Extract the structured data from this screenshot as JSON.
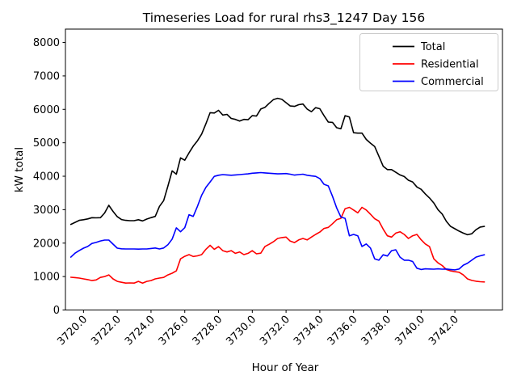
{
  "title": "Timeseries Load for rural rhs3_1247  Day 156",
  "chart_data": {
    "type": "line",
    "title": "Timeseries Load for rural rhs3_1247  Day 156",
    "xlabel": "Hour of Year",
    "ylabel": "kW total",
    "xlim": [
      3718.93,
      3744.82
    ],
    "ylim": [
      0,
      8400
    ],
    "grid": false,
    "legend_position": "upper right",
    "x_start": 3719.25,
    "x_step": 0.25,
    "x_ticks": [
      3720,
      3722,
      3724,
      3726,
      3728,
      3730,
      3732,
      3734,
      3736,
      3738,
      3740,
      3742
    ],
    "x_tick_labels": [
      "3720.0",
      "3722.0",
      "3724.0",
      "3726.0",
      "3728.0",
      "3730.0",
      "3732.0",
      "3734.0",
      "3736.0",
      "3738.0",
      "3740.0",
      "3742.0"
    ],
    "y_ticks": [
      0,
      1000,
      2000,
      3000,
      4000,
      5000,
      6000,
      7000,
      8000
    ],
    "y_tick_labels": [
      "0",
      "1000",
      "2000",
      "3000",
      "4000",
      "5000",
      "6000",
      "7000",
      "8000"
    ],
    "series": [
      {
        "name": "Total",
        "color": "#000000",
        "values": [
          2560,
          2620,
          2680,
          2700,
          2725,
          2760,
          2755,
          2760,
          2900,
          3130,
          2950,
          2790,
          2705,
          2680,
          2670,
          2670,
          2700,
          2665,
          2720,
          2760,
          2800,
          3100,
          3270,
          3700,
          4160,
          4060,
          4550,
          4480,
          4700,
          4900,
          5060,
          5260,
          5570,
          5900,
          5890,
          5970,
          5830,
          5850,
          5730,
          5700,
          5650,
          5700,
          5690,
          5810,
          5800,
          6010,
          6060,
          6180,
          6290,
          6330,
          6300,
          6200,
          6100,
          6090,
          6140,
          6160,
          6010,
          5930,
          6050,
          6020,
          5810,
          5620,
          5610,
          5450,
          5420,
          5810,
          5770,
          5300,
          5290,
          5290,
          5100,
          4990,
          4890,
          4600,
          4300,
          4200,
          4200,
          4120,
          4040,
          3990,
          3880,
          3830,
          3680,
          3610,
          3470,
          3350,
          3200,
          3000,
          2870,
          2650,
          2500,
          2430,
          2360,
          2300,
          2250,
          2280,
          2400,
          2480,
          2500
        ]
      },
      {
        "name": "Residential",
        "color": "#ff0000",
        "values": [
          980,
          970,
          955,
          930,
          910,
          880,
          900,
          975,
          1000,
          1050,
          930,
          855,
          830,
          805,
          810,
          805,
          855,
          805,
          855,
          880,
          930,
          955,
          975,
          1050,
          1100,
          1170,
          1530,
          1605,
          1655,
          1600,
          1620,
          1655,
          1815,
          1935,
          1815,
          1895,
          1775,
          1735,
          1775,
          1695,
          1735,
          1655,
          1695,
          1775,
          1680,
          1700,
          1900,
          1965,
          2040,
          2140,
          2165,
          2180,
          2060,
          2015,
          2095,
          2140,
          2095,
          2180,
          2260,
          2330,
          2440,
          2470,
          2580,
          2700,
          2740,
          3030,
          3070,
          2990,
          2905,
          3070,
          2990,
          2865,
          2730,
          2660,
          2420,
          2220,
          2180,
          2300,
          2340,
          2260,
          2140,
          2220,
          2260,
          2100,
          1975,
          1895,
          1530,
          1410,
          1330,
          1210,
          1170,
          1145,
          1130,
          1050,
          930,
          885,
          860,
          845,
          840
        ]
      },
      {
        "name": "Commercial",
        "color": "#0000ff",
        "values": [
          1580,
          1700,
          1780,
          1850,
          1900,
          1990,
          2020,
          2065,
          2090,
          2090,
          1970,
          1850,
          1830,
          1825,
          1825,
          1825,
          1820,
          1825,
          1825,
          1840,
          1855,
          1825,
          1855,
          1950,
          2120,
          2455,
          2340,
          2460,
          2850,
          2800,
          3100,
          3430,
          3670,
          3830,
          3995,
          4030,
          4050,
          4040,
          4030,
          4040,
          4050,
          4060,
          4070,
          4090,
          4100,
          4110,
          4100,
          4090,
          4080,
          4070,
          4075,
          4080,
          4060,
          4035,
          4050,
          4060,
          4030,
          4010,
          3995,
          3930,
          3760,
          3710,
          3400,
          3050,
          2780,
          2740,
          2220,
          2260,
          2220,
          1900,
          1975,
          1855,
          1530,
          1490,
          1650,
          1615,
          1775,
          1800,
          1580,
          1490,
          1490,
          1450,
          1250,
          1210,
          1230,
          1225,
          1220,
          1230,
          1220,
          1225,
          1210,
          1200,
          1225,
          1340,
          1400,
          1490,
          1580,
          1620,
          1650
        ]
      }
    ],
    "legend": {
      "entries": [
        {
          "label": "Total",
          "color": "#000000"
        },
        {
          "label": "Residential",
          "color": "#ff0000"
        },
        {
          "label": "Commercial",
          "color": "#0000ff"
        }
      ]
    }
  }
}
